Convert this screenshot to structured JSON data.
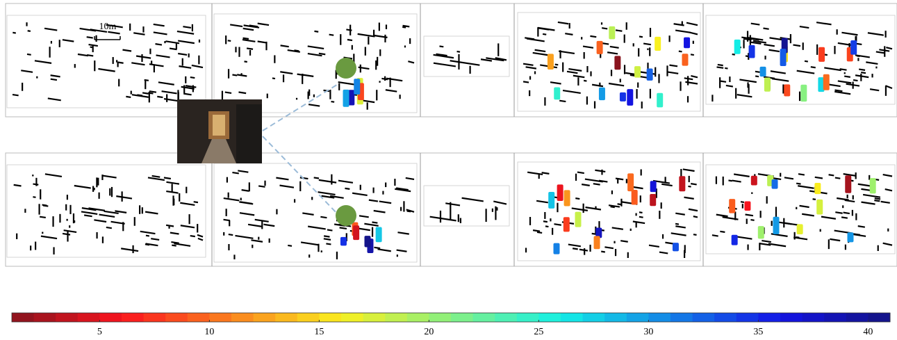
{
  "scale_label": "10m",
  "colorbar": {
    "lim": [
      1,
      41
    ],
    "ticks": [
      5,
      10,
      15,
      20,
      25,
      30,
      35,
      40
    ]
  }
}
